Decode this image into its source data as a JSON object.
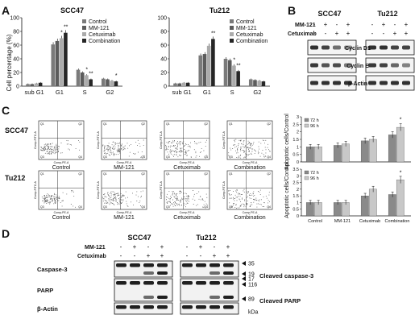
{
  "panel_labels": [
    "A",
    "B",
    "C",
    "D"
  ],
  "colors": {
    "control": "#7a7a7a",
    "mm121": "#5c5c5c",
    "cetuximab": "#ababab",
    "combination": "#262626",
    "bar72": "#8a8a8a",
    "bar96": "#c8c8c8",
    "blot_band": "#1a1a1a",
    "flow_dots": "#5a5a5a"
  },
  "chart_data": [
    {
      "type": "bar",
      "title": "SCC47",
      "ylabel": "Cell percentage (%)",
      "categories": [
        "sub G1",
        "G1",
        "S",
        "G2"
      ],
      "ylim": [
        0,
        100
      ],
      "yticks": [
        "0",
        "20",
        "40",
        "60",
        "80",
        "100"
      ],
      "series": [
        {
          "name": "Control",
          "values": [
            3,
            61,
            24,
            11
          ]
        },
        {
          "name": "MM-121",
          "values": [
            3,
            66,
            20,
            10
          ]
        },
        {
          "name": "Cetuximab",
          "values": [
            4,
            70,
            16,
            8
          ]
        },
        {
          "name": "Combination",
          "values": [
            5,
            78,
            10,
            7
          ]
        }
      ],
      "annotations": [
        "*",
        "**",
        "*",
        "**",
        "*"
      ],
      "legend": "top-right"
    },
    {
      "type": "bar",
      "title": "Tu212",
      "categories": [
        "sub G1",
        "G1",
        "S",
        "G2"
      ],
      "ylim": [
        0,
        100
      ],
      "yticks": [
        "0",
        "20",
        "40",
        "60",
        "80",
        "100"
      ],
      "series": [
        {
          "name": "Control",
          "values": [
            4,
            45,
            40,
            10
          ]
        },
        {
          "name": "MM-121",
          "values": [
            4,
            47,
            38,
            9
          ]
        },
        {
          "name": "Cetuximab",
          "values": [
            5,
            59,
            30,
            8
          ]
        },
        {
          "name": "Combination",
          "values": [
            5,
            69,
            22,
            7
          ]
        }
      ],
      "annotations": [
        "**",
        "*",
        "**"
      ],
      "legend": "top-right"
    },
    {
      "type": "bar",
      "cell_line": "SCC47",
      "ylabel": "Apoptotic cells/Control",
      "categories": [
        "Control",
        "MM-121",
        "Cetuximab",
        "Combination"
      ],
      "ylim": [
        0,
        3
      ],
      "yticks": [
        "0",
        "0.5",
        "1",
        "1.5",
        "2",
        "2.5",
        "3"
      ],
      "series": [
        {
          "name": "72 h",
          "values": [
            1.0,
            1.1,
            1.4,
            1.8
          ]
        },
        {
          "name": "96 h",
          "values": [
            1.0,
            1.2,
            1.5,
            2.3
          ]
        }
      ],
      "annotations": [
        "*"
      ],
      "legend": "top-left"
    },
    {
      "type": "bar",
      "cell_line": "Tu212",
      "ylabel": "Apoptotic cells/Control",
      "categories": [
        "Control",
        "MM-121",
        "Cetuximab",
        "Combination"
      ],
      "ylim": [
        0,
        3.5
      ],
      "yticks": [
        "0",
        "0.5",
        "1",
        "1.5",
        "2",
        "2.5",
        "3",
        "3.5"
      ],
      "series": [
        {
          "name": "72 h",
          "values": [
            1.0,
            1.0,
            1.5,
            1.6
          ]
        },
        {
          "name": "96 h",
          "values": [
            1.0,
            1.0,
            2.0,
            2.7
          ]
        }
      ],
      "annotations": [
        "*"
      ],
      "legend": "top-left"
    }
  ],
  "panelB": {
    "cell_lines": [
      "SCC47",
      "Tu212"
    ],
    "row_labels": [
      "MM-121",
      "Cetuximab"
    ],
    "mm121_signs": [
      "-",
      "+",
      "-",
      "+"
    ],
    "cetuximab_signs": [
      "-",
      "-",
      "+",
      "+"
    ],
    "bands": [
      "Cyclin D1",
      "Cyclin E",
      "β-Actin"
    ],
    "intensity_scc47": [
      [
        0.9,
        0.8,
        0.55,
        0.35
      ],
      [
        0.85,
        0.7,
        0.75,
        0.5
      ],
      [
        0.9,
        0.9,
        0.9,
        0.9
      ]
    ],
    "intensity_tu212": [
      [
        0.9,
        0.9,
        0.8,
        0.8
      ],
      [
        0.85,
        0.8,
        0.6,
        0.45
      ],
      [
        0.9,
        0.9,
        0.9,
        0.9
      ]
    ]
  },
  "panelC": {
    "cell_lines": [
      "SCC47",
      "Tu212"
    ],
    "conditions": [
      "Control",
      "MM-121",
      "Cetuximab",
      "Combination"
    ],
    "flow_xlabel": "Comp-PE-A",
    "flow_ylabel": "Comp-FITC-A",
    "quadrants": [
      "Q1",
      "Q2",
      "Q3",
      "Q4"
    ]
  },
  "panelD": {
    "cell_lines": [
      "SCC47",
      "Tu212"
    ],
    "row_labels": [
      "MM-121",
      "Cetuximab"
    ],
    "mm121_signs": [
      "-",
      "+",
      "-",
      "+"
    ],
    "cetuximab_signs": [
      "-",
      "-",
      "+",
      "+"
    ],
    "bands": [
      "Caspase-3",
      "PARP",
      "β-Actin"
    ],
    "markers": [
      "35",
      "19",
      "17",
      "116",
      "89",
      "kDa"
    ],
    "marker_labels": [
      "Cleaved caspase-3",
      "Cleaved PARP"
    ]
  }
}
